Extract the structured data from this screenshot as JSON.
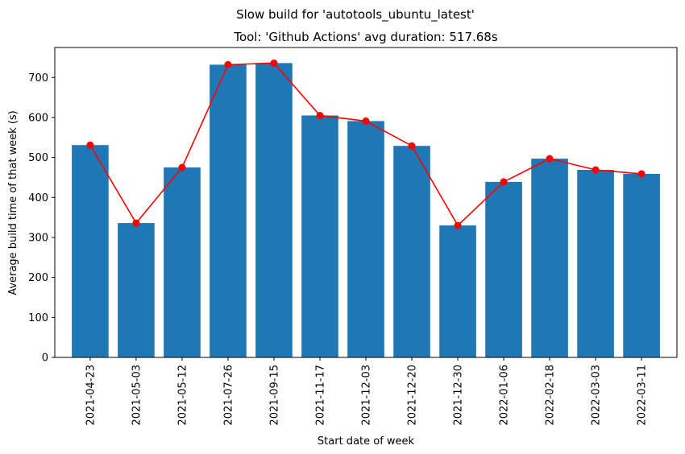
{
  "chart_data": {
    "type": "bar",
    "suptitle": "Slow build for 'autotools_ubuntu_latest'",
    "title": "Tool: 'Github Actions' avg duration: 517.68s",
    "xlabel": "Start date of week",
    "ylabel": "Average build time of that week (s)",
    "ylim": [
      0,
      775
    ],
    "yticks": [
      0,
      100,
      200,
      300,
      400,
      500,
      600,
      700
    ],
    "categories": [
      "2021-04-23",
      "2021-05-03",
      "2021-05-12",
      "2021-07-26",
      "2021-09-15",
      "2021-11-17",
      "2021-12-03",
      "2021-12-20",
      "2021-12-30",
      "2022-01-06",
      "2022-02-18",
      "2022-03-03",
      "2022-03-11"
    ],
    "series": [
      {
        "values": [
          531,
          336,
          475,
          732,
          736,
          605,
          591,
          529,
          330,
          439,
          497,
          469,
          459
        ],
        "color": "#1f77b4",
        "kind": "bar"
      },
      {
        "values": [
          531,
          336,
          475,
          732,
          736,
          605,
          591,
          529,
          330,
          439,
          497,
          469,
          459
        ],
        "color": "#ff0000",
        "kind": "line-markers"
      }
    ],
    "grid": false,
    "legend": "none"
  }
}
